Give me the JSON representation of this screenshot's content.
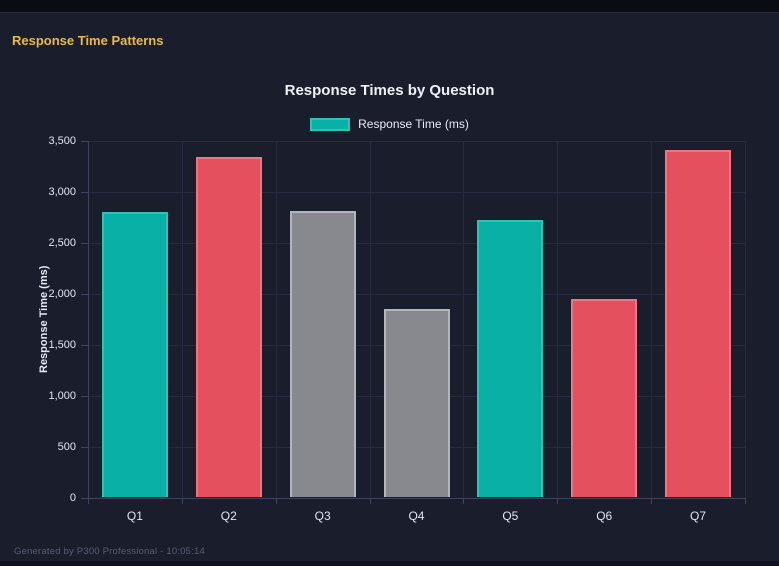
{
  "page": {
    "title": "Response Time Patterns"
  },
  "chart_data": {
    "type": "bar",
    "title": "Response Times by Question",
    "legend": [
      {
        "label": "Response Time (ms)",
        "color": "#09b0a6"
      }
    ],
    "legend_position": "top",
    "categories": [
      "Q1",
      "Q2",
      "Q3",
      "Q4",
      "Q5",
      "Q6",
      "Q7"
    ],
    "values": [
      2790,
      3330,
      2800,
      1840,
      2720,
      1940,
      3400
    ],
    "bar_colors": [
      "teal",
      "red",
      "gray",
      "gray",
      "teal",
      "red",
      "red"
    ],
    "palette": {
      "teal": {
        "fill": "#09b0a6",
        "border": "#2fc2b6"
      },
      "red": {
        "fill": "#e5505e",
        "border": "#ee7680"
      },
      "gray": {
        "fill": "#87898f",
        "border": "#b3b5bb"
      }
    },
    "xlabel": "",
    "ylabel": "Response Time (ms)",
    "ylim": [
      0,
      3500
    ],
    "y_tick_step": 500,
    "y_tick_labels": [
      "0",
      "500",
      "1,000",
      "1,500",
      "2,000",
      "2,500",
      "3,000",
      "3,500"
    ],
    "grid": true
  },
  "footer": {
    "text": "Generated by P300 Professional - 10:05:14"
  }
}
